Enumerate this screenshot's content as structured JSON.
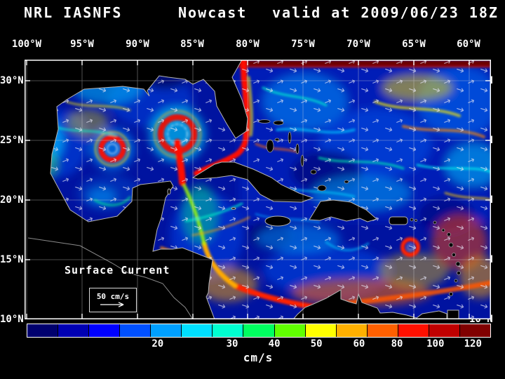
{
  "header": {
    "model": "NRL IASNFS",
    "product": "Nowcast",
    "valid": "valid at 2009/06/23 18Z"
  },
  "axes": {
    "lon": [
      "100°W",
      "95°W",
      "90°W",
      "85°W",
      "80°W",
      "75°W",
      "70°W",
      "65°W",
      "60°W"
    ],
    "lat": [
      "30°N",
      "25°N",
      "20°N",
      "15°N",
      "10°N"
    ]
  },
  "map": {
    "annotation": "Surface Current",
    "scale_label": "50 cm/s"
  },
  "colorbar": {
    "units": "cm/s",
    "ticks": [
      "20",
      "30",
      "40",
      "50",
      "60",
      "80",
      "100",
      "120"
    ],
    "colors": [
      "#00006e",
      "#0000b4",
      "#0000ff",
      "#0050ff",
      "#00a0ff",
      "#00e0ff",
      "#00ffd0",
      "#00ff60",
      "#60ff00",
      "#ffff00",
      "#ffb000",
      "#ff6000",
      "#ff1000",
      "#c00000",
      "#800000"
    ]
  }
}
